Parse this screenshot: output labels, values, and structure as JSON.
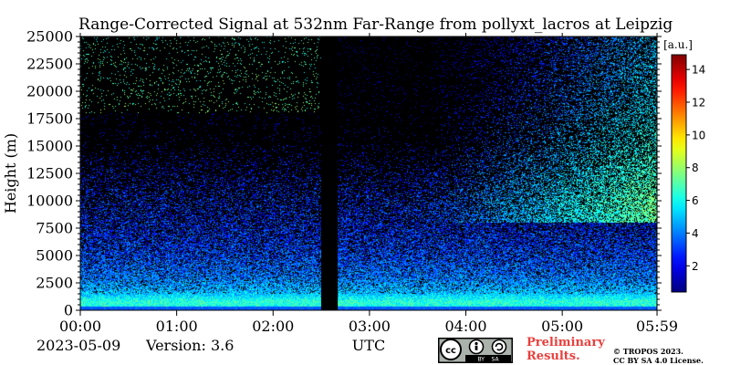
{
  "title": "Range-Corrected Signal at 532nm Far-Range from pollyxt_lacros at Leipzig",
  "footer": {
    "date": "2023-05-09",
    "version": "Version: 3.6",
    "preliminary_line1": "Preliminary",
    "preliminary_line2": "Results.",
    "copyright_line1": "© TROPOS 2023.",
    "copyright_line2": "CC BY SA 4.0 License.",
    "license_badge": "CC BY SA"
  },
  "chart_data": {
    "type": "heatmap",
    "title": "Range-Corrected Signal at 532nm Far-Range from pollyxt_lacros at Leipzig",
    "xlabel": "UTC",
    "ylabel": "Height (m)",
    "x_ticks": [
      "00:00",
      "01:00",
      "02:00",
      "03:00",
      "04:00",
      "05:00",
      "05:59"
    ],
    "x_range_hours": [
      0,
      5.983
    ],
    "y_ticks": [
      0,
      2500,
      5000,
      7500,
      10000,
      12500,
      15000,
      17500,
      20000,
      22500,
      25000
    ],
    "ylim": [
      0,
      25000
    ],
    "colorbar": {
      "label": "[a.u.]",
      "ticks": [
        2,
        4,
        6,
        8,
        10,
        12,
        14
      ],
      "range": [
        0.4,
        14.9
      ],
      "colormap": "jet"
    },
    "data_gap_hours": [
      2.5,
      2.67
    ],
    "profile_summary": [
      {
        "height_m": 250,
        "signal": 6.0
      },
      {
        "height_m": 750,
        "signal": 6.5
      },
      {
        "height_m": 1500,
        "signal": 5.0
      },
      {
        "height_m": 3000,
        "signal": 4.0
      },
      {
        "height_m": 5000,
        "signal": 3.4
      },
      {
        "height_m": 7500,
        "signal": 3.0
      },
      {
        "height_m": 10000,
        "signal": 3.0
      },
      {
        "height_m": 12500,
        "signal": 2.5
      },
      {
        "height_m": 15000,
        "signal": 2.0
      },
      {
        "height_m": 20000,
        "signal": 1.0
      },
      {
        "height_m": 25000,
        "signal": 0.5
      }
    ]
  }
}
